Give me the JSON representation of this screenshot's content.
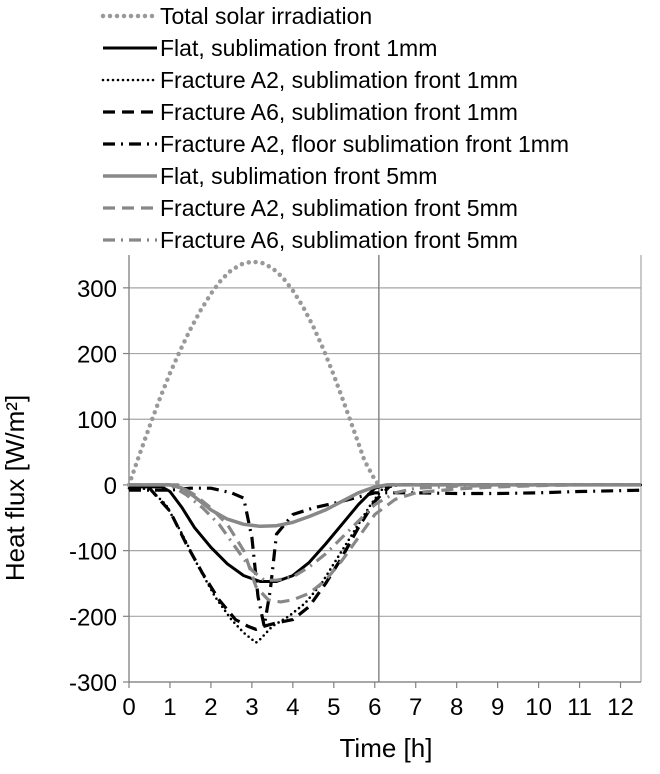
{
  "chart_data": {
    "type": "line",
    "title": "",
    "xlabel": "Time [h]",
    "ylabel": "Heat flux  [W/m²]",
    "xlim": [
      0,
      12.5
    ],
    "ylim": [
      -300,
      350
    ],
    "xticks": [
      0,
      1,
      2,
      3,
      4,
      5,
      6,
      7,
      8,
      9,
      10,
      11,
      12
    ],
    "yticks": [
      -300,
      -200,
      -100,
      0,
      100,
      200,
      300
    ],
    "vertical_marker_x": 6.1,
    "grid": true,
    "legend_position": "top",
    "series": [
      {
        "name": "Total solar irradiation",
        "color": "#999999",
        "style": "dotted-heavy",
        "x": [
          0,
          0.25,
          0.5,
          0.75,
          1.0,
          1.25,
          1.5,
          1.75,
          2.0,
          2.25,
          2.5,
          2.75,
          3.0,
          3.25,
          3.5,
          3.75,
          4.0,
          4.25,
          4.5,
          4.75,
          5.0,
          5.25,
          5.5,
          5.75,
          6.0,
          6.1
        ],
        "y": [
          0,
          45,
          89,
          131,
          170,
          205,
          237,
          266,
          291,
          312,
          327,
          336,
          340,
          338,
          330,
          316,
          296,
          271,
          241,
          206,
          167,
          125,
          81,
          37,
          8,
          0
        ]
      },
      {
        "name": "Flat, sublimation front 1mm",
        "color": "#000000",
        "style": "solid",
        "x": [
          0,
          0.8,
          1.0,
          1.3,
          1.6,
          2.0,
          2.4,
          2.8,
          3.2,
          3.6,
          4.0,
          4.4,
          4.8,
          5.2,
          5.6,
          6.0,
          6.3,
          6.8,
          8,
          10,
          12.5
        ],
        "y": [
          -3,
          -3,
          -10,
          -35,
          -65,
          -95,
          -120,
          -138,
          -147,
          -147,
          -138,
          -118,
          -90,
          -60,
          -30,
          -5,
          0,
          0,
          0,
          0,
          0
        ]
      },
      {
        "name": "Fracture A2, sublimation front 1mm",
        "color": "#000000",
        "style": "dotted",
        "x": [
          0,
          0.5,
          0.9,
          1.3,
          1.7,
          2.1,
          2.5,
          2.8,
          3.0,
          3.1,
          3.2,
          3.5,
          3.9,
          4.3,
          4.7,
          5.1,
          5.5,
          5.9,
          6.2,
          6.6,
          8,
          10,
          12.5
        ],
        "y": [
          -5,
          -6,
          -30,
          -75,
          -125,
          -170,
          -205,
          -225,
          -235,
          -240,
          -235,
          -215,
          -200,
          -180,
          -150,
          -110,
          -70,
          -30,
          -5,
          0,
          0,
          0,
          0
        ]
      },
      {
        "name": "Fracture A6, sublimation front 1mm",
        "color": "#000000",
        "style": "dashed",
        "x": [
          0,
          0.5,
          1.0,
          1.4,
          1.8,
          2.2,
          2.6,
          2.9,
          3.1,
          3.3,
          3.6,
          4.0,
          4.4,
          4.8,
          5.2,
          5.6,
          6.0,
          6.4,
          8,
          10,
          12.5
        ],
        "y": [
          -5,
          -5,
          -40,
          -90,
          -135,
          -175,
          -205,
          -215,
          -220,
          -215,
          -210,
          -205,
          -185,
          -150,
          -110,
          -65,
          -25,
          0,
          0,
          0,
          0
        ]
      },
      {
        "name": "Fracture A2, floor sublimation front 1mm",
        "color": "#000000",
        "style": "dash-dot",
        "x": [
          0,
          1.0,
          1.5,
          2.0,
          2.5,
          2.8,
          3.0,
          3.15,
          3.3,
          3.45,
          3.6,
          4.0,
          4.5,
          5.0,
          5.5,
          6.0,
          7.0,
          8.0,
          9.0,
          10.0,
          11.0,
          12.5
        ],
        "y": [
          -8,
          -8,
          -5,
          -5,
          -12,
          -20,
          -80,
          -170,
          -215,
          -160,
          -75,
          -45,
          -35,
          -28,
          -20,
          -12,
          -12,
          -13,
          -13,
          -12,
          -10,
          -8
        ]
      },
      {
        "name": "Flat, sublimation front 5mm",
        "color": "#888888",
        "style": "solid-thick",
        "x": [
          0,
          1.0,
          1.3,
          1.6,
          2.0,
          2.4,
          2.8,
          3.2,
          3.6,
          4.0,
          4.4,
          4.8,
          5.2,
          5.6,
          6.0,
          6.3,
          6.8,
          8,
          10,
          12.5
        ],
        "y": [
          0,
          0,
          -5,
          -18,
          -38,
          -52,
          -60,
          -63,
          -62,
          -57,
          -48,
          -38,
          -25,
          -12,
          -3,
          0,
          0,
          0,
          0,
          0
        ]
      },
      {
        "name": "Fracture A2, sublimation front 5mm",
        "color": "#888888",
        "style": "dashed",
        "x": [
          0,
          1.2,
          1.6,
          2.0,
          2.4,
          2.8,
          3.1,
          3.4,
          3.7,
          4.0,
          4.4,
          4.8,
          5.2,
          5.6,
          6.0,
          6.5,
          7.0,
          8.0,
          9.0,
          10.0,
          11.0,
          12.5
        ],
        "y": [
          0,
          0,
          -15,
          -35,
          -60,
          -100,
          -155,
          -175,
          -178,
          -175,
          -165,
          -145,
          -115,
          -80,
          -45,
          -22,
          -12,
          -6,
          -3,
          -1,
          0,
          0
        ]
      },
      {
        "name": "Fracture A6, sublimation front 5mm",
        "color": "#888888",
        "style": "dash-dot",
        "x": [
          0,
          1.0,
          1.4,
          1.8,
          2.2,
          2.6,
          3.0,
          3.3,
          3.6,
          4.0,
          4.4,
          4.8,
          5.2,
          5.6,
          6.0,
          6.5,
          7.0,
          8.0,
          9.0,
          10.0,
          11.0,
          12.5
        ],
        "y": [
          0,
          0,
          -15,
          -35,
          -60,
          -95,
          -130,
          -145,
          -145,
          -140,
          -125,
          -105,
          -80,
          -55,
          -30,
          -12,
          -5,
          -2,
          -1,
          0,
          0,
          0
        ]
      }
    ]
  }
}
